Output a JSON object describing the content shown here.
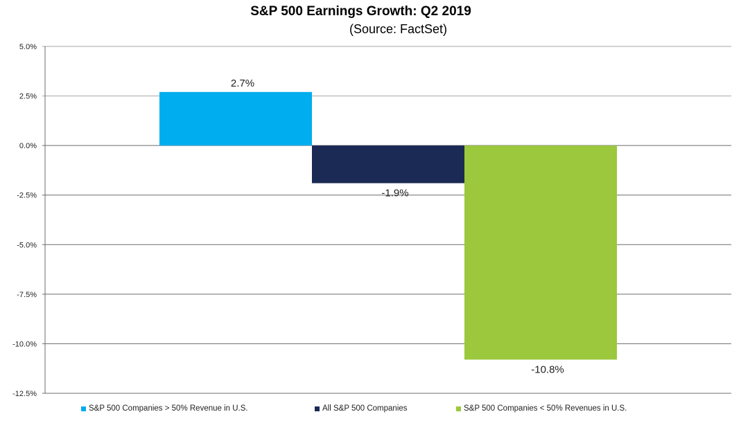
{
  "chart_data": {
    "type": "bar",
    "title": "S&P 500 Earnings Growth: Q2 2019",
    "subtitle": "(Source: FactSet)",
    "xlabel": "",
    "ylabel": "",
    "ylim": [
      -12.5,
      5.0
    ],
    "yticks": [
      5.0,
      2.5,
      0.0,
      -2.5,
      -5.0,
      -7.5,
      -10.0,
      -12.5
    ],
    "ytick_labels": [
      "5.0%",
      "2.5%",
      "0.0%",
      "-2.5%",
      "-5.0%",
      "-7.5%",
      "-10.0%",
      "-12.5%"
    ],
    "grid": true,
    "legend_position": "bottom",
    "series": [
      {
        "name": "S&P 500 Companies > 50% Revenue in U.S.",
        "value": 2.7,
        "label": "2.7%",
        "color": "#00adee"
      },
      {
        "name": "All S&P 500 Companies",
        "value": -1.9,
        "label": "-1.9%",
        "color": "#1b2a54"
      },
      {
        "name": "S&P 500 Companies < 50% Revenues in U.S.",
        "value": -10.8,
        "label": "-10.8%",
        "color": "#9bc83c"
      }
    ]
  }
}
